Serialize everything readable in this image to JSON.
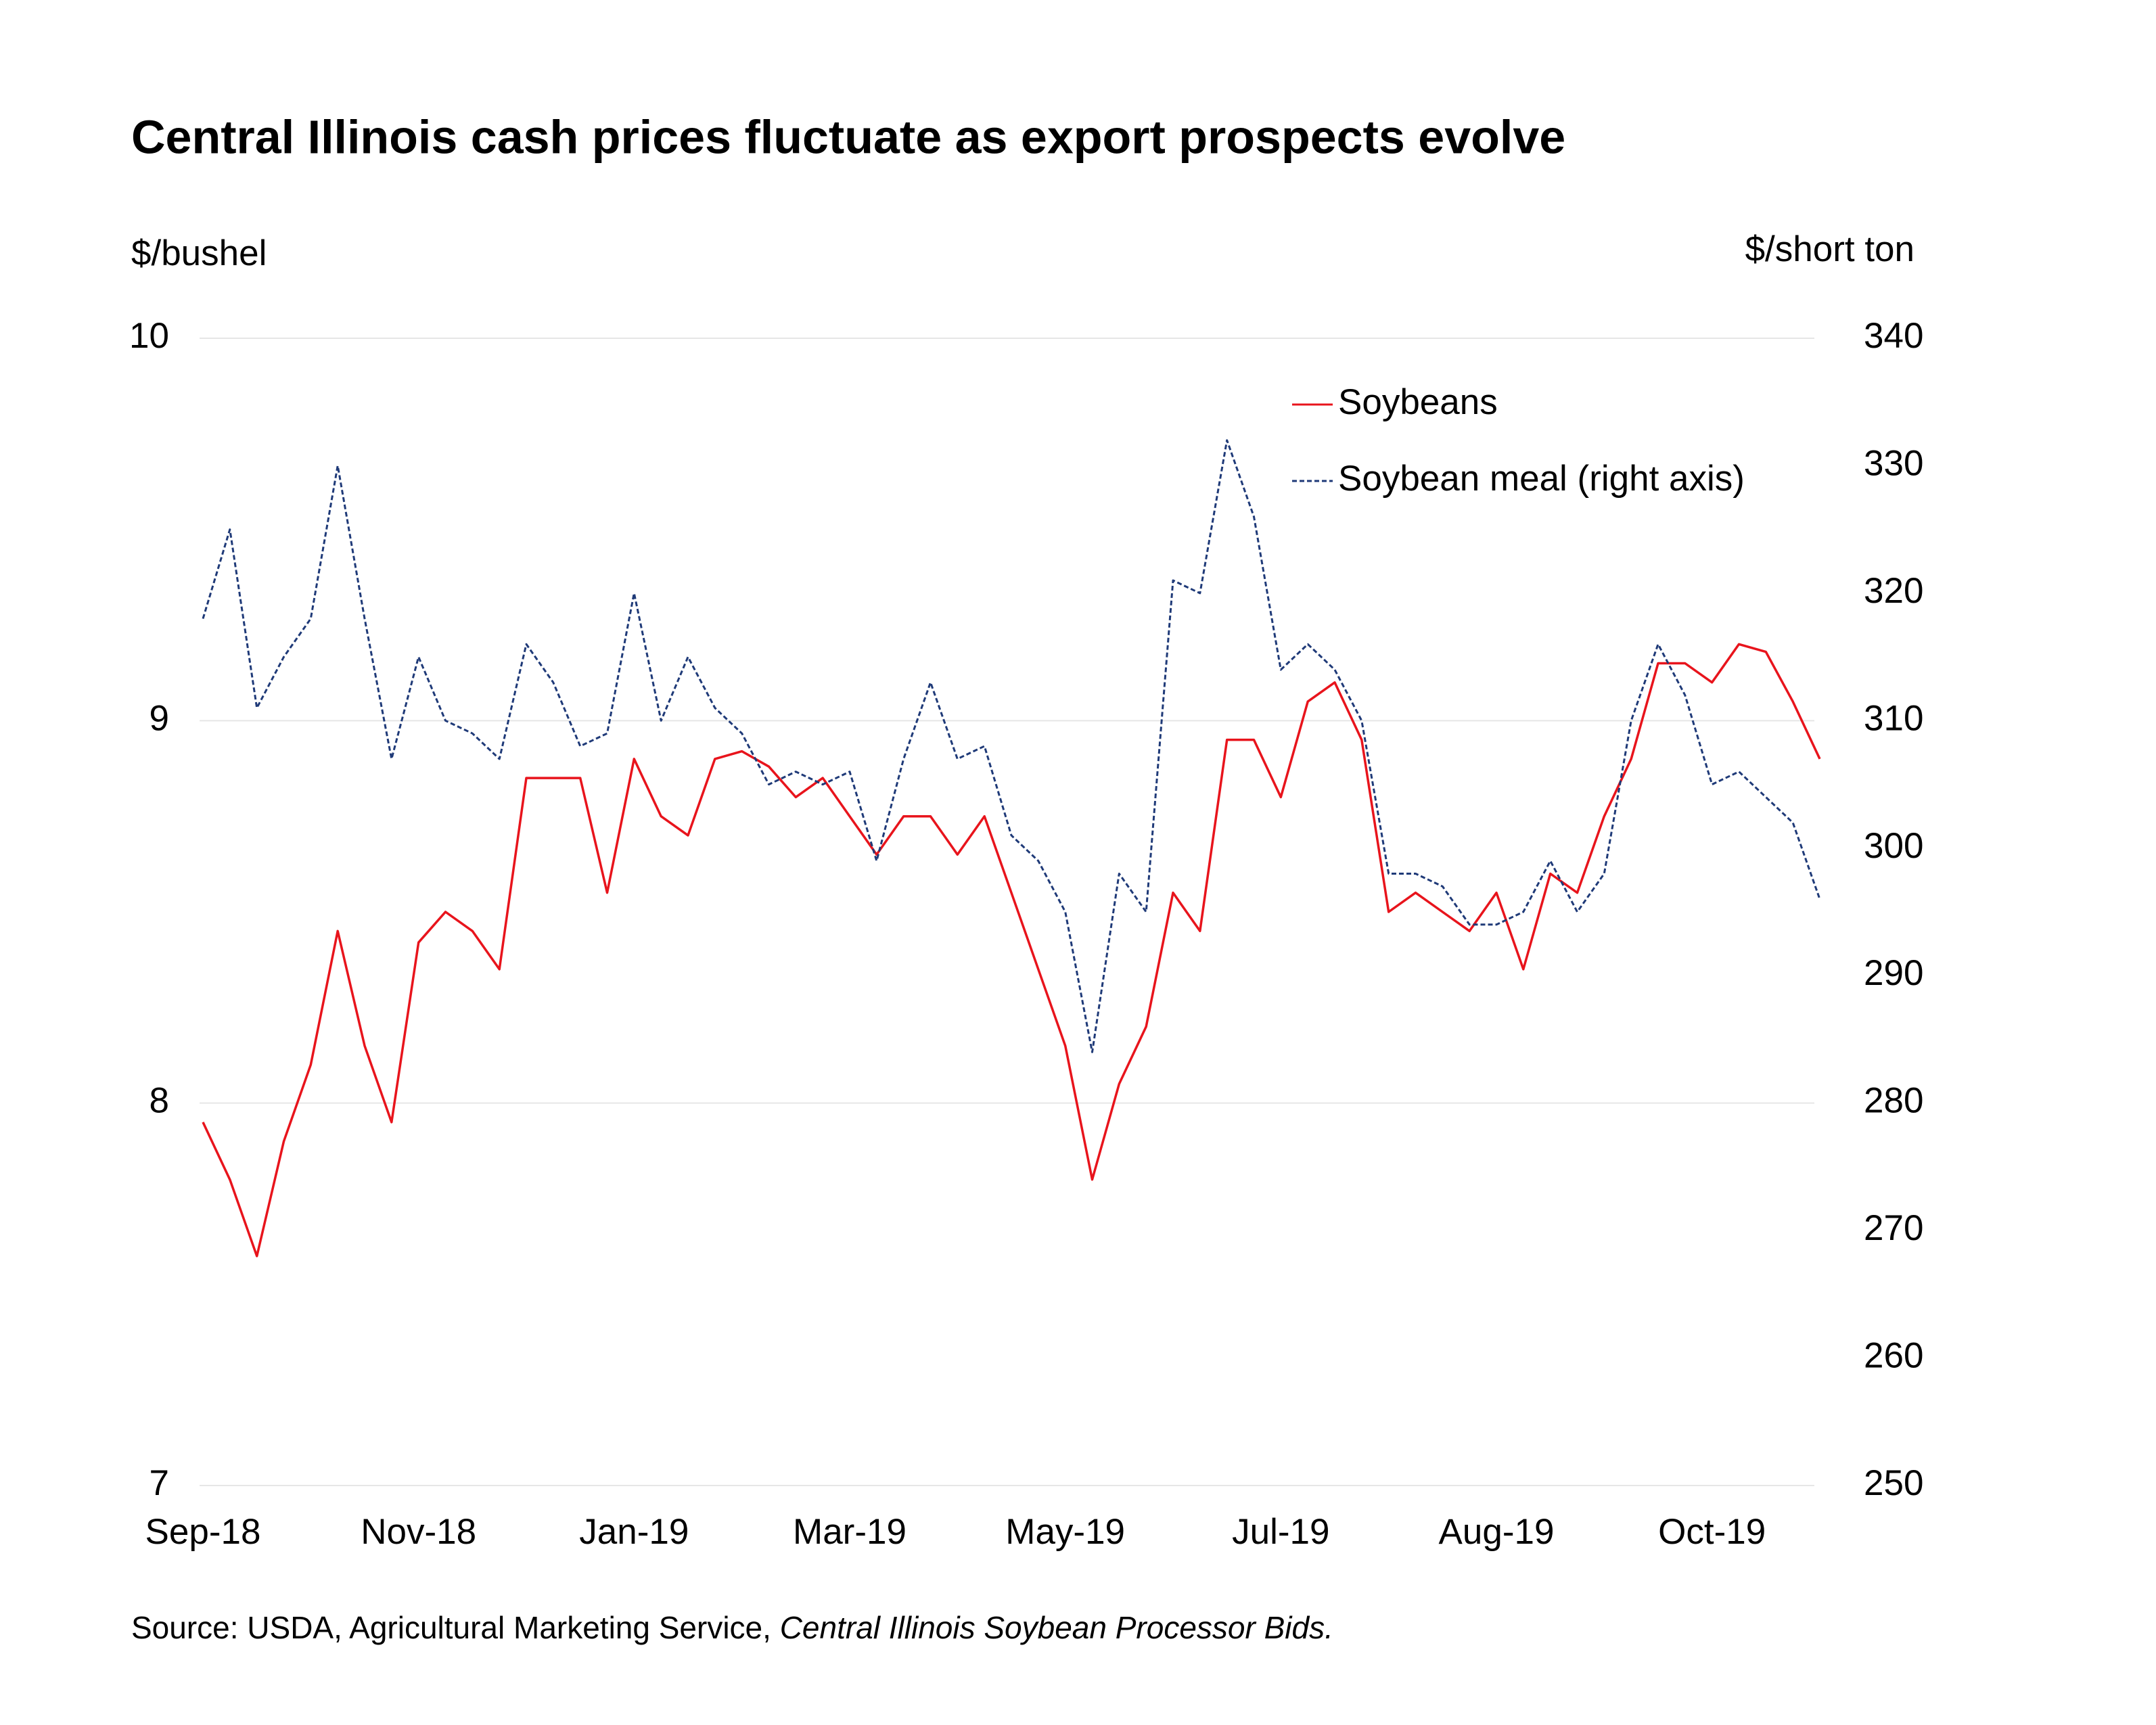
{
  "chart_data": {
    "type": "line",
    "title": "Central Illinois cash prices fluctuate as export prospects evolve",
    "y_label": "$/bushel",
    "y2_label": "$/short ton",
    "source": "Source: USDA, Agricultural Marketing Service, ",
    "source_title": "Central Illinois Soybean Processor Bids.",
    "categories": [
      "Sep-18",
      null,
      null,
      null,
      null,
      null,
      null,
      null,
      "Nov-18",
      null,
      null,
      null,
      null,
      null,
      null,
      null,
      "Jan-19",
      null,
      null,
      null,
      null,
      null,
      null,
      null,
      "Mar-19",
      null,
      null,
      null,
      null,
      null,
      null,
      null,
      "May-19",
      null,
      null,
      null,
      null,
      null,
      null,
      null,
      "Jul-19",
      null,
      null,
      null,
      null,
      null,
      null,
      null,
      "Aug-19",
      null,
      null,
      null,
      null,
      null,
      null,
      null,
      "Oct-19",
      null,
      null,
      null,
      null
    ],
    "series": [
      {
        "name": "Soybeans",
        "color": "#e8141c",
        "dash": false,
        "values": [
          7.95,
          7.8,
          7.6,
          7.9,
          8.1,
          8.45,
          8.15,
          7.95,
          8.42,
          8.5,
          8.45,
          8.35,
          8.85,
          8.85,
          8.85,
          8.55,
          8.9,
          8.75,
          8.7,
          8.9,
          8.92,
          8.88,
          8.8,
          8.85,
          8.75,
          8.65,
          8.75,
          8.75,
          8.65,
          8.75,
          8.55,
          8.35,
          8.15,
          7.8,
          8.05,
          8.2,
          8.55,
          8.45,
          8.95,
          8.95,
          8.8,
          9.05,
          9.1,
          8.95,
          8.5,
          8.55,
          8.5,
          8.45,
          8.55,
          8.35,
          8.6,
          8.55,
          8.75,
          8.9,
          9.15,
          9.15,
          9.1,
          9.2,
          9.18,
          9.05,
          8.9
        ]
      },
      {
        "name": "Soybean meal (right axis)",
        "color": "#1f3a78",
        "dash": true,
        "axis": "y2",
        "values": [
          318,
          325,
          311,
          315,
          318,
          330,
          318,
          307,
          315,
          310,
          309,
          307,
          316,
          313,
          308,
          309,
          320,
          310,
          315,
          311,
          309,
          305,
          306,
          305,
          306,
          299,
          307,
          313,
          307,
          308,
          301,
          299,
          295,
          284,
          298,
          295,
          321,
          320,
          332,
          326,
          314,
          316,
          314,
          310,
          298,
          298,
          297,
          294,
          294,
          295,
          299,
          295,
          298,
          310,
          316,
          312,
          305,
          306,
          304,
          302,
          296
        ]
      }
    ],
    "ylim": [
      7,
      10
    ],
    "yticks": [
      7,
      8,
      9,
      10
    ],
    "y2lim": [
      250,
      340
    ],
    "y2ticks": [
      250,
      260,
      270,
      280,
      290,
      300,
      310,
      320,
      330,
      340
    ],
    "grid": true,
    "legend": "upper right"
  }
}
